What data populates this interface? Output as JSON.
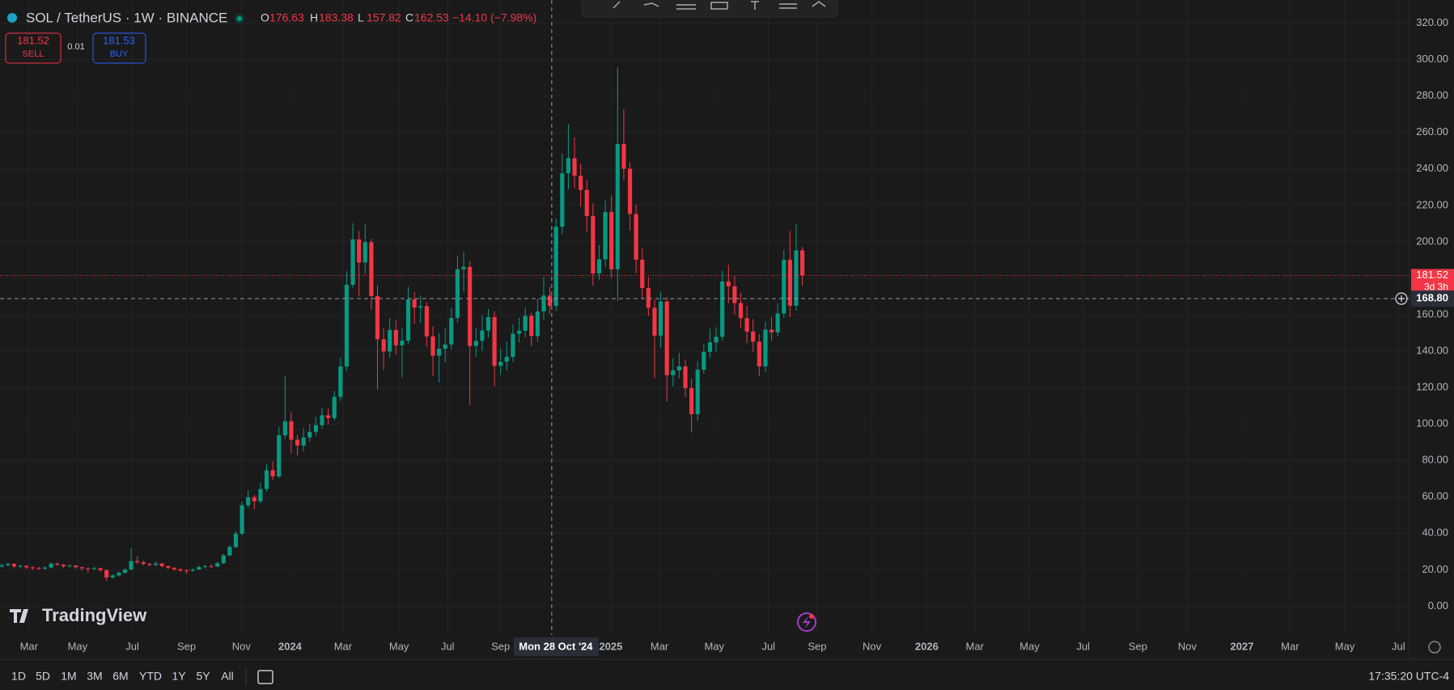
{
  "legend": {
    "symbol": "SOL / TetherUS · 1W · BINANCE",
    "ohlc": [
      {
        "key": "O",
        "value": "176.63"
      },
      {
        "key": "H",
        "value": "183.38"
      },
      {
        "key": "L",
        "value": "157.82"
      },
      {
        "key": "C",
        "value": "162.53"
      }
    ],
    "change": "−14.10 (−7.98%)"
  },
  "trade": {
    "sell_price": "181.52",
    "sell": "SELL",
    "spread": "0.01",
    "buy_price": "181.53",
    "buy": "BUY"
  },
  "brand": "TradingView",
  "ranges": [
    "1D",
    "5D",
    "1M",
    "3M",
    "6M",
    "YTD",
    "1Y",
    "5Y",
    "All"
  ],
  "clock": "17:35:20 UTC-4",
  "chart_data": {
    "type": "candlestick",
    "up_color": "#089981",
    "down_color": "#f23645",
    "grid": true,
    "xlim": [
      -0.3,
      228.6
    ],
    "ylim": [
      -15.8,
      332.7
    ],
    "xticks": [
      {
        "value": 4.4,
        "label": "Mar"
      },
      {
        "value": 12.3,
        "label": "May"
      },
      {
        "value": 21.2,
        "label": "Jul"
      },
      {
        "value": 30.0,
        "label": "Sep"
      },
      {
        "value": 38.9,
        "label": "Nov"
      },
      {
        "value": 46.8,
        "label": "2024"
      },
      {
        "value": 55.4,
        "label": "Mar"
      },
      {
        "value": 64.5,
        "label": "May"
      },
      {
        "value": 72.4,
        "label": "Jul"
      },
      {
        "value": 81.0,
        "label": "Sep"
      },
      {
        "value": 98.9,
        "label": "2025"
      },
      {
        "value": 106.8,
        "label": "Mar"
      },
      {
        "value": 115.7,
        "label": "May"
      },
      {
        "value": 124.5,
        "label": "Jul"
      },
      {
        "value": 132.4,
        "label": "Sep"
      },
      {
        "value": 141.3,
        "label": "Nov"
      },
      {
        "value": 150.2,
        "label": "2026"
      },
      {
        "value": 158.0,
        "label": "Mar"
      },
      {
        "value": 166.9,
        "label": "May"
      },
      {
        "value": 175.6,
        "label": "Jul"
      },
      {
        "value": 184.5,
        "label": "Sep"
      },
      {
        "value": 192.5,
        "label": "Nov"
      },
      {
        "value": 201.4,
        "label": "2027"
      },
      {
        "value": 209.2,
        "label": "Mar"
      },
      {
        "value": 218.1,
        "label": "May"
      },
      {
        "value": 226.8,
        "label": "Jul"
      }
    ],
    "yticks": [
      {
        "value": 0,
        "label": "0.00"
      },
      {
        "value": 20,
        "label": "20.00"
      },
      {
        "value": 40,
        "label": "40.00"
      },
      {
        "value": 60,
        "label": "60.00"
      },
      {
        "value": 80,
        "label": "80.00"
      },
      {
        "value": 100,
        "label": "100.00"
      },
      {
        "value": 120,
        "label": "120.00"
      },
      {
        "value": 140,
        "label": "140.00"
      },
      {
        "value": 160,
        "label": "160.00"
      },
      {
        "value": 180,
        "label": "180.00"
      },
      {
        "value": 200,
        "label": "200.00"
      },
      {
        "value": 220,
        "label": "220.00"
      },
      {
        "value": 240,
        "label": "240.00"
      },
      {
        "value": 260,
        "label": "260.00"
      },
      {
        "value": 280,
        "label": "280.00"
      },
      {
        "value": 300,
        "label": "300.00"
      },
      {
        "value": 320,
        "label": "320.00"
      }
    ],
    "last_price": 181.52,
    "countdown": "3d 3h",
    "crosshair": {
      "price": {
        "value": 168.8,
        "label": "168.80"
      },
      "date": {
        "value": 89.3,
        "label": "Mon 28 Oct '24"
      }
    },
    "open": [
      21.8,
      22.5,
      23.2,
      21.8,
      22.1,
      21.3,
      21.0,
      20.6,
      21.2,
      23.4,
      22.8,
      21.9,
      22.3,
      21.4,
      20.8,
      20.4,
      20.9,
      19.8,
      15.8,
      16.9,
      18.4,
      20.1,
      24.8,
      24.1,
      23.2,
      22.6,
      23.4,
      22.0,
      21.1,
      20.3,
      19.6,
      19.5,
      20.1,
      21.5,
      22.0,
      21.8,
      23.6,
      27.9,
      32.5,
      39.8,
      55.4,
      59.8,
      57.6,
      64.3,
      74.6,
      71.2,
      93.8,
      101.5,
      91.4,
      88.2,
      92.6,
      95.7,
      99.4,
      104.8,
      103.2,
      114.9,
      131.6,
      176.4,
      201.3,
      188.6,
      199.8,
      170.2,
      146.5,
      139.8,
      151.6,
      143.2,
      145.7,
      168.4,
      163.9,
      164.7,
      148.1,
      137.5,
      141.3,
      143.6,
      158.2,
      184.9,
      186.2,
      142.8,
      145.6,
      151.3,
      158.7,
      131.9,
      134.2,
      136.8,
      149.5,
      151.2,
      159.4,
      148.3,
      161.8,
      170.5,
      164.8,
      208.3,
      237.6,
      245.9,
      236.2,
      228.5,
      214.1,
      182.6,
      190.4,
      216.3,
      184.9,
      253.7,
      240.1,
      215.3,
      190.2,
      174.6,
      163.8,
      148.5,
      167.2,
      126.8,
      129.4,
      131.6,
      119.7,
      105.4,
      129.8,
      139.6,
      144.8,
      147.9,
      178.3,
      175.6,
      166.4,
      158.1,
      150.7,
      145.2,
      131.6,
      151.8,
      150.3,
      160.7,
      190.1,
      164.9,
      195.3
    ],
    "high": [
      23.4,
      24.0,
      23.6,
      22.9,
      22.6,
      21.9,
      21.6,
      22.0,
      24.2,
      24.0,
      23.1,
      23.0,
      22.6,
      21.8,
      21.3,
      21.7,
      21.2,
      20.1,
      17.6,
      19.0,
      20.9,
      32.1,
      27.3,
      25.0,
      23.9,
      24.6,
      23.8,
      22.4,
      21.5,
      20.7,
      20.2,
      20.8,
      22.3,
      22.9,
      23.0,
      24.4,
      28.8,
      33.6,
      41.2,
      57.3,
      63.6,
      61.1,
      67.8,
      78.0,
      79.4,
      98.6,
      126.2,
      106.4,
      94.2,
      97.6,
      99.9,
      103.8,
      109.0,
      108.7,
      118.2,
      136.4,
      183.9,
      210.2,
      205.9,
      209.9,
      201.6,
      176.1,
      152.4,
      158.2,
      157.0,
      152.8,
      175.3,
      172.5,
      170.6,
      166.9,
      153.6,
      149.8,
      152.4,
      163.7,
      192.1,
      194.6,
      189.4,
      152.6,
      159.7,
      163.1,
      161.8,
      141.5,
      145.2,
      154.6,
      158.3,
      164.1,
      161.0,
      168.9,
      180.6,
      175.2,
      212.7,
      248.4,
      264.6,
      257.3,
      242.7,
      234.0,
      221.1,
      198.3,
      222.8,
      225.4,
      295.8,
      272.8,
      243.9,
      220.4,
      196.3,
      180.5,
      168.4,
      172.6,
      169.5,
      136.2,
      139.1,
      135.4,
      124.9,
      134.6,
      143.8,
      152.3,
      153.1,
      184.2,
      187.4,
      181.2,
      172.0,
      164.9,
      157.6,
      149.3,
      156.2,
      158.9,
      166.2,
      195.4,
      206.0,
      209.5,
      197.2
    ],
    "low": [
      21.2,
      21.9,
      20.9,
      21.0,
      20.4,
      19.9,
      19.8,
      20.0,
      20.8,
      22.0,
      21.0,
      21.2,
      20.5,
      19.6,
      18.2,
      19.8,
      18.9,
      13.9,
      15.1,
      16.4,
      17.9,
      19.8,
      23.0,
      22.4,
      21.7,
      22.1,
      21.2,
      20.3,
      19.4,
      18.8,
      17.7,
      18.9,
      19.8,
      20.9,
      21.1,
      21.4,
      23.1,
      27.2,
      31.8,
      38.9,
      54.0,
      53.2,
      56.4,
      62.9,
      69.1,
      70.4,
      91.5,
      83.8,
      82.7,
      85.1,
      90.2,
      93.1,
      97.3,
      99.6,
      101.8,
      112.7,
      129.1,
      174.5,
      170.1,
      182.3,
      162.8,
      118.9,
      129.7,
      136.4,
      138.1,
      125.5,
      143.9,
      155.1,
      155.4,
      142.3,
      126.4,
      122.7,
      133.8,
      140.9,
      155.7,
      172.9,
      110.5,
      136.8,
      140.2,
      147.4,
      120.8,
      126.9,
      129.3,
      134.1,
      144.7,
      147.6,
      142.6,
      145.0,
      157.3,
      160.4,
      161.9,
      204.1,
      228.8,
      229.4,
      219.3,
      205.6,
      175.8,
      179.2,
      186.1,
      180.3,
      167.5,
      233.6,
      206.2,
      182.7,
      168.8,
      159.2,
      125.3,
      141.8,
      112.4,
      120.6,
      125.2,
      114.8,
      95.3,
      101.7,
      127.5,
      136.2,
      139.7,
      145.6,
      166.3,
      160.1,
      152.7,
      144.3,
      139.8,
      126.1,
      128.4,
      145.7,
      148.1,
      158.2,
      158.6,
      162.1,
      175.8
    ],
    "close": [
      22.5,
      23.2,
      21.8,
      22.1,
      21.3,
      21.0,
      20.6,
      21.2,
      23.4,
      22.8,
      21.9,
      22.3,
      21.4,
      20.8,
      20.4,
      20.9,
      19.8,
      15.8,
      16.9,
      18.4,
      20.1,
      24.8,
      24.1,
      23.2,
      22.6,
      23.4,
      22.0,
      21.1,
      20.3,
      19.6,
      19.5,
      20.1,
      21.5,
      22.0,
      21.8,
      23.6,
      27.9,
      32.5,
      39.8,
      55.4,
      59.8,
      57.6,
      64.3,
      74.6,
      71.2,
      93.8,
      101.5,
      91.4,
      88.2,
      92.6,
      95.7,
      99.4,
      104.8,
      103.2,
      114.9,
      131.6,
      176.4,
      201.3,
      188.6,
      199.8,
      170.2,
      146.5,
      139.8,
      151.6,
      143.2,
      145.7,
      168.4,
      163.9,
      164.7,
      148.1,
      137.5,
      141.3,
      143.6,
      158.2,
      184.9,
      186.2,
      142.8,
      145.6,
      151.3,
      158.7,
      131.9,
      134.2,
      136.8,
      149.5,
      151.2,
      159.4,
      148.3,
      161.8,
      170.5,
      164.8,
      208.3,
      237.6,
      245.9,
      236.2,
      228.5,
      214.1,
      182.6,
      190.4,
      216.3,
      184.9,
      253.7,
      240.1,
      215.3,
      190.2,
      174.6,
      163.8,
      148.5,
      167.2,
      126.8,
      129.4,
      131.6,
      119.7,
      105.4,
      129.8,
      139.6,
      144.8,
      147.9,
      178.3,
      175.6,
      166.4,
      158.1,
      150.7,
      145.2,
      131.6,
      151.8,
      150.3,
      160.7,
      190.1,
      164.9,
      195.3,
      181.5
    ]
  }
}
